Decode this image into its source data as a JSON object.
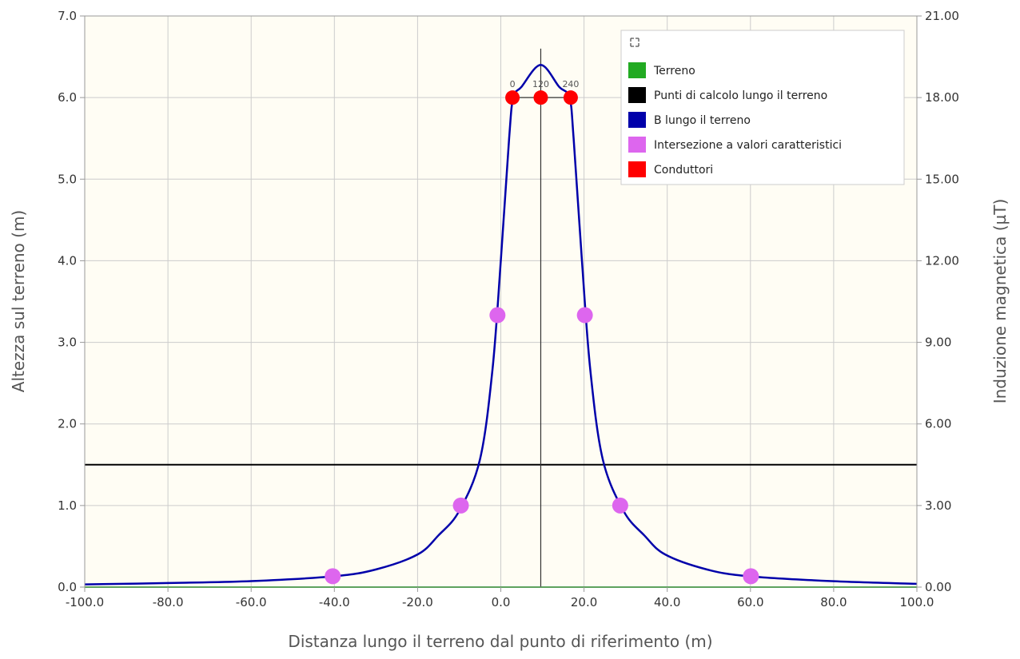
{
  "chart_data": {
    "type": "line",
    "xlabel": "Distanza lungo il terreno dal punto di riferimento (m)",
    "ylabel_left": "Altezza sul terreno (m)",
    "ylabel_right": "Induzione magnetica (µT)",
    "xlim": [
      -100,
      100
    ],
    "ylim_left": [
      0,
      7
    ],
    "ylim_right": [
      0,
      21
    ],
    "x_ticks": [
      "-100.0",
      "-80.0",
      "-60.0",
      "-40.0",
      "-20.0",
      "0.0",
      "20.0",
      "40.0",
      "60.0",
      "80.0",
      "100.0"
    ],
    "y_left_ticks": [
      "0.0",
      "1.0",
      "2.0",
      "3.0",
      "4.0",
      "5.0",
      "6.0",
      "7.0"
    ],
    "y_right_ticks": [
      "0.00",
      "3.00",
      "6.00",
      "9.00",
      "12.00",
      "15.00",
      "18.00",
      "21.00"
    ],
    "grid": true,
    "legend_position": "top-right",
    "legend": [
      {
        "label": "Terreno",
        "color": "#22aa22"
      },
      {
        "label": "Punti di calcolo lungo il terreno",
        "color": "#000000"
      },
      {
        "label": "B lungo il terreno",
        "color": "#0000aa"
      },
      {
        "label": "Intersezione a valori caratteristici",
        "color": "#dd66ee"
      },
      {
        "label": "Conduttori",
        "color": "#ff0000"
      }
    ],
    "terrain": {
      "x": [
        -100,
        100
      ],
      "y": [
        0,
        0
      ]
    },
    "calc_line_height": 1.5,
    "vertical_line_x": 9.6,
    "vertical_line_ylim": [
      0,
      6.6
    ],
    "b_curve_points": [
      [
        -100,
        0.1
      ],
      [
        -80,
        0.15
      ],
      [
        -60,
        0.22
      ],
      [
        -40,
        0.4
      ],
      [
        -30,
        0.65
      ],
      [
        -20,
        1.2
      ],
      [
        -15,
        1.9
      ],
      [
        -10,
        2.8
      ],
      [
        -5,
        4.7
      ],
      [
        -2,
        8.0
      ],
      [
        0,
        12.0
      ],
      [
        2,
        16.5
      ],
      [
        3,
        18.0
      ],
      [
        5,
        18.4
      ],
      [
        9.6,
        19.2
      ],
      [
        14,
        18.4
      ],
      [
        16.5,
        18.0
      ],
      [
        17.5,
        16.5
      ],
      [
        19.5,
        12.0
      ],
      [
        21.5,
        8.0
      ],
      [
        24.5,
        4.7
      ],
      [
        29.5,
        2.8
      ],
      [
        34.5,
        1.9
      ],
      [
        39.5,
        1.2
      ],
      [
        49.5,
        0.65
      ],
      [
        59.5,
        0.4
      ],
      [
        79.5,
        0.22
      ],
      [
        100,
        0.12
      ]
    ],
    "characteristic_points": [
      {
        "x": -40.4,
        "b": 0.4
      },
      {
        "x": -9.6,
        "b": 3.0
      },
      {
        "x": -0.8,
        "b": 10.0
      },
      {
        "x": 20.2,
        "b": 10.0
      },
      {
        "x": 28.7,
        "b": 3.0
      },
      {
        "x": 60.1,
        "b": 0.4
      }
    ],
    "conductors": [
      {
        "x": 2.8,
        "h": 6.0,
        "label": "0"
      },
      {
        "x": 9.6,
        "h": 6.0,
        "label": "120"
      },
      {
        "x": 16.8,
        "h": 6.0,
        "label": "240"
      }
    ]
  }
}
